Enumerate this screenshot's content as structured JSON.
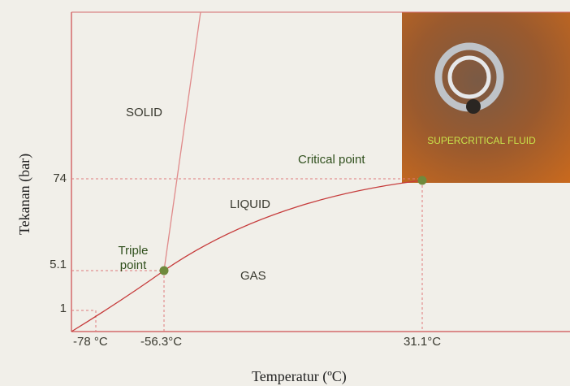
{
  "axes": {
    "x_label": "Temperatur (ºC)",
    "y_label": "Tekanan (bar)"
  },
  "y_ticks": [
    "74",
    "5.1",
    "1"
  ],
  "x_ticks": [
    "-78 °C",
    "-56.3°C",
    "31.1°C"
  ],
  "regions": [
    "SOLID",
    "LIQUID",
    "GAS"
  ],
  "points": [
    "Triple point",
    "Critical point"
  ],
  "inset": {
    "label": "SUPERCRITICAL FLUID"
  }
}
